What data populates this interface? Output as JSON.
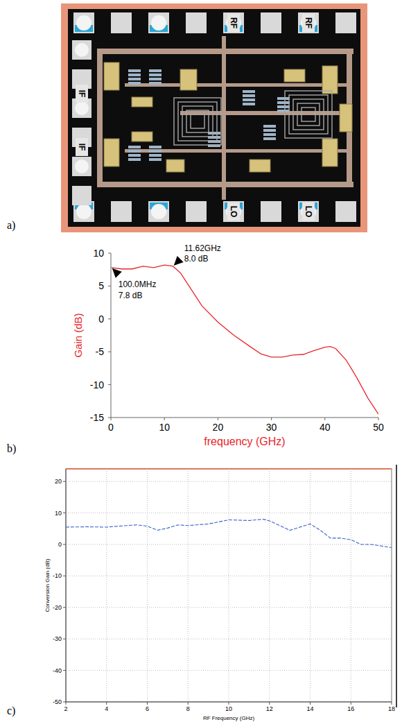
{
  "panels": {
    "labels": [
      "a)",
      "b)",
      "c)"
    ]
  },
  "layout": {
    "pads": [
      "RF",
      "RF",
      "IF",
      "IF",
      "LO",
      "LO"
    ]
  },
  "chart_data": [
    {
      "type": "line",
      "x_label": "frequency (GHz)",
      "y_label": "Gain (dB)",
      "x": [
        0.1,
        2,
        4,
        6,
        8,
        10,
        11.62,
        13,
        15,
        17,
        20,
        23,
        26,
        28,
        30,
        32,
        34,
        36,
        38,
        40,
        41,
        42,
        44,
        46,
        48,
        50
      ],
      "series": [
        {
          "color": "#e8262b",
          "line_style": "solid",
          "values": [
            7.8,
            7.6,
            7.6,
            8.0,
            7.8,
            8.2,
            8.0,
            7.0,
            4.5,
            2.0,
            -0.5,
            -2.5,
            -4.2,
            -5.3,
            -5.8,
            -5.8,
            -5.5,
            -5.4,
            -4.8,
            -4.3,
            -4.2,
            -4.5,
            -6.3,
            -9.0,
            -12.0,
            -14.5
          ]
        }
      ],
      "xlim": [
        0,
        50
      ],
      "xticks": [
        0,
        10,
        20,
        30,
        40,
        50
      ],
      "ylim": [
        -15,
        10
      ],
      "yticks": [
        -15,
        -10,
        -5,
        0,
        5,
        10
      ],
      "grid": false,
      "annotations": [
        {
          "x": 0.1,
          "y": 7.8,
          "text": [
            "100.0MHz",
            "7.8 dB"
          ]
        },
        {
          "x": 11.62,
          "y": 8.0,
          "text": [
            "11.62GHz",
            "8.0 dB"
          ]
        }
      ]
    },
    {
      "type": "line",
      "x_label": "RF Frequency (GHz)",
      "y_label": "Conversion Gain (dB)",
      "x": [
        2,
        3,
        4,
        5,
        5.5,
        6,
        6.5,
        7,
        7.5,
        8,
        9,
        10,
        11,
        11.7,
        12,
        13,
        14,
        14.5,
        15,
        15.5,
        16,
        16.5,
        17,
        17.5,
        18
      ],
      "series": [
        {
          "color": "#3a5fcd",
          "line_style": "dashed",
          "values": [
            5.5,
            5.6,
            5.5,
            6.0,
            6.2,
            5.8,
            4.5,
            5.2,
            6.2,
            6.0,
            6.5,
            7.8,
            7.6,
            8.0,
            7.5,
            4.5,
            6.5,
            4.5,
            2.0,
            2.0,
            1.5,
            0.0,
            0.0,
            -0.5,
            -1.0
          ]
        }
      ],
      "xlim": [
        2,
        18
      ],
      "xticks": [
        2,
        4,
        6,
        8,
        10,
        12,
        14,
        16,
        18
      ],
      "ylim": [
        -50,
        24
      ],
      "yticks": [
        -50,
        -40,
        -30,
        -20,
        -10,
        0,
        10,
        20
      ],
      "grid": true
    }
  ]
}
